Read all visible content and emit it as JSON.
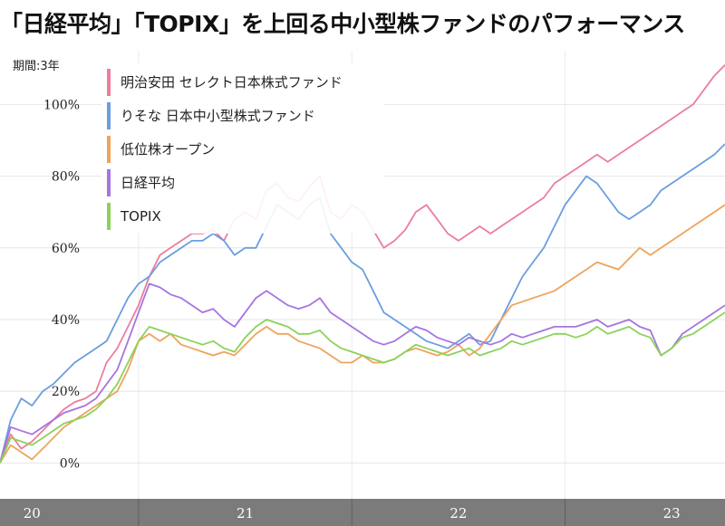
{
  "headline": "「日経平均」「TOPIX」を上回る中小型株ファンドのパフォーマンス",
  "chart_data": {
    "type": "line",
    "period_label": "期間:3年",
    "y_tick_labels": [
      "0%",
      "20%",
      "40%",
      "60%",
      "80%",
      "100%"
    ],
    "x_tick_labels": [
      "20",
      "21",
      "22",
      "23"
    ],
    "ylim": [
      -10,
      115
    ],
    "xlim": [
      2019.85,
      2023.25
    ],
    "x_ticks": [
      2020,
      2021,
      2022,
      2023
    ],
    "x_year_boundaries": [
      2020.5,
      2021.5,
      2022.5
    ],
    "grid": true,
    "legend_position": "top-left",
    "series": [
      {
        "name": "明治安田 セレクト日本株式ファンド",
        "color": "#ec7d9c",
        "x": [
          2019.85,
          2019.9,
          2019.95,
          2020.0,
          2020.05,
          2020.1,
          2020.15,
          2020.2,
          2020.25,
          2020.3,
          2020.35,
          2020.4,
          2020.45,
          2020.5,
          2020.55,
          2020.6,
          2020.65,
          2020.7,
          2020.75,
          2020.8,
          2020.85,
          2020.9,
          2020.95,
          2021.0,
          2021.05,
          2021.1,
          2021.15,
          2021.2,
          2021.25,
          2021.3,
          2021.35,
          2021.4,
          2021.45,
          2021.5,
          2021.55,
          2021.6,
          2021.65,
          2021.7,
          2021.75,
          2021.8,
          2021.85,
          2021.9,
          2021.95,
          2022.0,
          2022.05,
          2022.1,
          2022.15,
          2022.2,
          2022.25,
          2022.3,
          2022.35,
          2022.4,
          2022.45,
          2022.5,
          2022.55,
          2022.6,
          2022.65,
          2022.7,
          2022.75,
          2022.8,
          2022.85,
          2022.9,
          2022.95,
          2023.0,
          2023.05,
          2023.1,
          2023.15,
          2023.2,
          2023.25
        ],
        "values": [
          0,
          8,
          4,
          6,
          9,
          12,
          15,
          17,
          18,
          20,
          28,
          32,
          38,
          44,
          52,
          58,
          60,
          62,
          64,
          64,
          65,
          62,
          68,
          70,
          68,
          76,
          78,
          74,
          73,
          77,
          80,
          70,
          68,
          72,
          70,
          65,
          60,
          62,
          65,
          70,
          72,
          68,
          64,
          62,
          64,
          66,
          64,
          66,
          68,
          70,
          72,
          74,
          78,
          80,
          82,
          84,
          86,
          84,
          86,
          88,
          90,
          92,
          94,
          96,
          98,
          100,
          104,
          108,
          111
        ]
      },
      {
        "name": "りそな 日本中小型株式ファンド",
        "color": "#6a9ee0",
        "x": [
          2019.85,
          2019.9,
          2019.95,
          2020.0,
          2020.05,
          2020.1,
          2020.15,
          2020.2,
          2020.25,
          2020.3,
          2020.35,
          2020.4,
          2020.45,
          2020.5,
          2020.55,
          2020.6,
          2020.65,
          2020.7,
          2020.75,
          2020.8,
          2020.85,
          2020.9,
          2020.95,
          2021.0,
          2021.05,
          2021.1,
          2021.15,
          2021.2,
          2021.25,
          2021.3,
          2021.35,
          2021.4,
          2021.45,
          2021.5,
          2021.55,
          2021.6,
          2021.65,
          2021.7,
          2021.75,
          2021.8,
          2021.85,
          2021.9,
          2021.95,
          2022.0,
          2022.05,
          2022.1,
          2022.15,
          2022.2,
          2022.25,
          2022.3,
          2022.35,
          2022.4,
          2022.45,
          2022.5,
          2022.55,
          2022.6,
          2022.65,
          2022.7,
          2022.75,
          2022.8,
          2022.85,
          2022.9,
          2022.95,
          2023.0,
          2023.05,
          2023.1,
          2023.15,
          2023.2,
          2023.25
        ],
        "values": [
          0,
          12,
          18,
          16,
          20,
          22,
          25,
          28,
          30,
          32,
          34,
          40,
          46,
          50,
          52,
          56,
          58,
          60,
          62,
          62,
          64,
          62,
          58,
          60,
          60,
          66,
          72,
          70,
          68,
          72,
          74,
          64,
          60,
          56,
          54,
          48,
          42,
          40,
          38,
          36,
          34,
          33,
          32,
          34,
          36,
          33,
          34,
          40,
          46,
          52,
          56,
          60,
          66,
          72,
          76,
          80,
          78,
          74,
          70,
          68,
          70,
          72,
          76,
          78,
          80,
          82,
          84,
          86,
          89
        ]
      },
      {
        "name": "低位株オープン",
        "color": "#efa35c",
        "x": [
          2019.85,
          2019.9,
          2019.95,
          2020.0,
          2020.05,
          2020.1,
          2020.15,
          2020.2,
          2020.25,
          2020.3,
          2020.35,
          2020.4,
          2020.45,
          2020.5,
          2020.55,
          2020.6,
          2020.65,
          2020.7,
          2020.75,
          2020.8,
          2020.85,
          2020.9,
          2020.95,
          2021.0,
          2021.05,
          2021.1,
          2021.15,
          2021.2,
          2021.25,
          2021.3,
          2021.35,
          2021.4,
          2021.45,
          2021.5,
          2021.55,
          2021.6,
          2021.65,
          2021.7,
          2021.75,
          2021.8,
          2021.85,
          2021.9,
          2021.95,
          2022.0,
          2022.05,
          2022.1,
          2022.15,
          2022.2,
          2022.25,
          2022.3,
          2022.35,
          2022.4,
          2022.45,
          2022.5,
          2022.55,
          2022.6,
          2022.65,
          2022.7,
          2022.75,
          2022.8,
          2022.85,
          2022.9,
          2022.95,
          2023.0,
          2023.05,
          2023.1,
          2023.15,
          2023.2,
          2023.25
        ],
        "values": [
          0,
          5,
          3,
          1,
          4,
          7,
          10,
          12,
          14,
          16,
          18,
          20,
          26,
          34,
          36,
          34,
          36,
          33,
          32,
          31,
          30,
          31,
          30,
          33,
          36,
          38,
          36,
          36,
          34,
          33,
          32,
          30,
          28,
          28,
          30,
          28,
          28,
          29,
          31,
          32,
          31,
          30,
          31,
          33,
          30,
          32,
          36,
          40,
          44,
          45,
          46,
          47,
          48,
          50,
          52,
          54,
          56,
          55,
          54,
          57,
          60,
          58,
          60,
          62,
          64,
          66,
          68,
          70,
          72
        ]
      },
      {
        "name": "日経平均",
        "color": "#a575e0",
        "x": [
          2019.85,
          2019.9,
          2019.95,
          2020.0,
          2020.05,
          2020.1,
          2020.15,
          2020.2,
          2020.25,
          2020.3,
          2020.35,
          2020.4,
          2020.45,
          2020.5,
          2020.55,
          2020.6,
          2020.65,
          2020.7,
          2020.75,
          2020.8,
          2020.85,
          2020.9,
          2020.95,
          2021.0,
          2021.05,
          2021.1,
          2021.15,
          2021.2,
          2021.25,
          2021.3,
          2021.35,
          2021.4,
          2021.45,
          2021.5,
          2021.55,
          2021.6,
          2021.65,
          2021.7,
          2021.75,
          2021.8,
          2021.85,
          2021.9,
          2021.95,
          2022.0,
          2022.05,
          2022.1,
          2022.15,
          2022.2,
          2022.25,
          2022.3,
          2022.35,
          2022.4,
          2022.45,
          2022.5,
          2022.55,
          2022.6,
          2022.65,
          2022.7,
          2022.75,
          2022.8,
          2022.85,
          2022.9,
          2022.95,
          2023.0,
          2023.05,
          2023.1,
          2023.15,
          2023.2,
          2023.25
        ],
        "values": [
          0,
          10,
          9,
          8,
          10,
          12,
          14,
          15,
          16,
          18,
          22,
          26,
          34,
          42,
          50,
          49,
          47,
          46,
          44,
          42,
          43,
          40,
          38,
          42,
          46,
          48,
          46,
          44,
          43,
          44,
          46,
          42,
          40,
          38,
          36,
          34,
          33,
          34,
          36,
          38,
          37,
          35,
          34,
          33,
          35,
          34,
          33,
          34,
          36,
          35,
          36,
          37,
          38,
          38,
          38,
          39,
          40,
          38,
          39,
          40,
          38,
          37,
          30,
          32,
          36,
          38,
          40,
          42,
          44
        ]
      },
      {
        "name": "TOPIX",
        "color": "#8cd25a",
        "x": [
          2019.85,
          2019.9,
          2019.95,
          2020.0,
          2020.05,
          2020.1,
          2020.15,
          2020.2,
          2020.25,
          2020.3,
          2020.35,
          2020.4,
          2020.45,
          2020.5,
          2020.55,
          2020.6,
          2020.65,
          2020.7,
          2020.75,
          2020.8,
          2020.85,
          2020.9,
          2020.95,
          2021.0,
          2021.05,
          2021.1,
          2021.15,
          2021.2,
          2021.25,
          2021.3,
          2021.35,
          2021.4,
          2021.45,
          2021.5,
          2021.55,
          2021.6,
          2021.65,
          2021.7,
          2021.75,
          2021.8,
          2021.85,
          2021.9,
          2021.95,
          2022.0,
          2022.05,
          2022.1,
          2022.15,
          2022.2,
          2022.25,
          2022.3,
          2022.35,
          2022.4,
          2022.45,
          2022.5,
          2022.55,
          2022.6,
          2022.65,
          2022.7,
          2022.75,
          2022.8,
          2022.85,
          2022.9,
          2022.95,
          2023.0,
          2023.05,
          2023.1,
          2023.15,
          2023.2,
          2023.25
        ],
        "values": [
          0,
          7,
          6,
          5,
          7,
          9,
          11,
          12,
          13,
          15,
          18,
          22,
          28,
          34,
          38,
          37,
          36,
          35,
          34,
          33,
          34,
          32,
          31,
          35,
          38,
          40,
          39,
          38,
          36,
          36,
          37,
          34,
          32,
          31,
          30,
          29,
          28,
          29,
          31,
          33,
          32,
          31,
          30,
          31,
          32,
          30,
          31,
          32,
          34,
          33,
          34,
          35,
          36,
          36,
          35,
          36,
          38,
          36,
          37,
          38,
          36,
          35,
          30,
          32,
          35,
          36,
          38,
          40,
          42
        ]
      }
    ]
  }
}
